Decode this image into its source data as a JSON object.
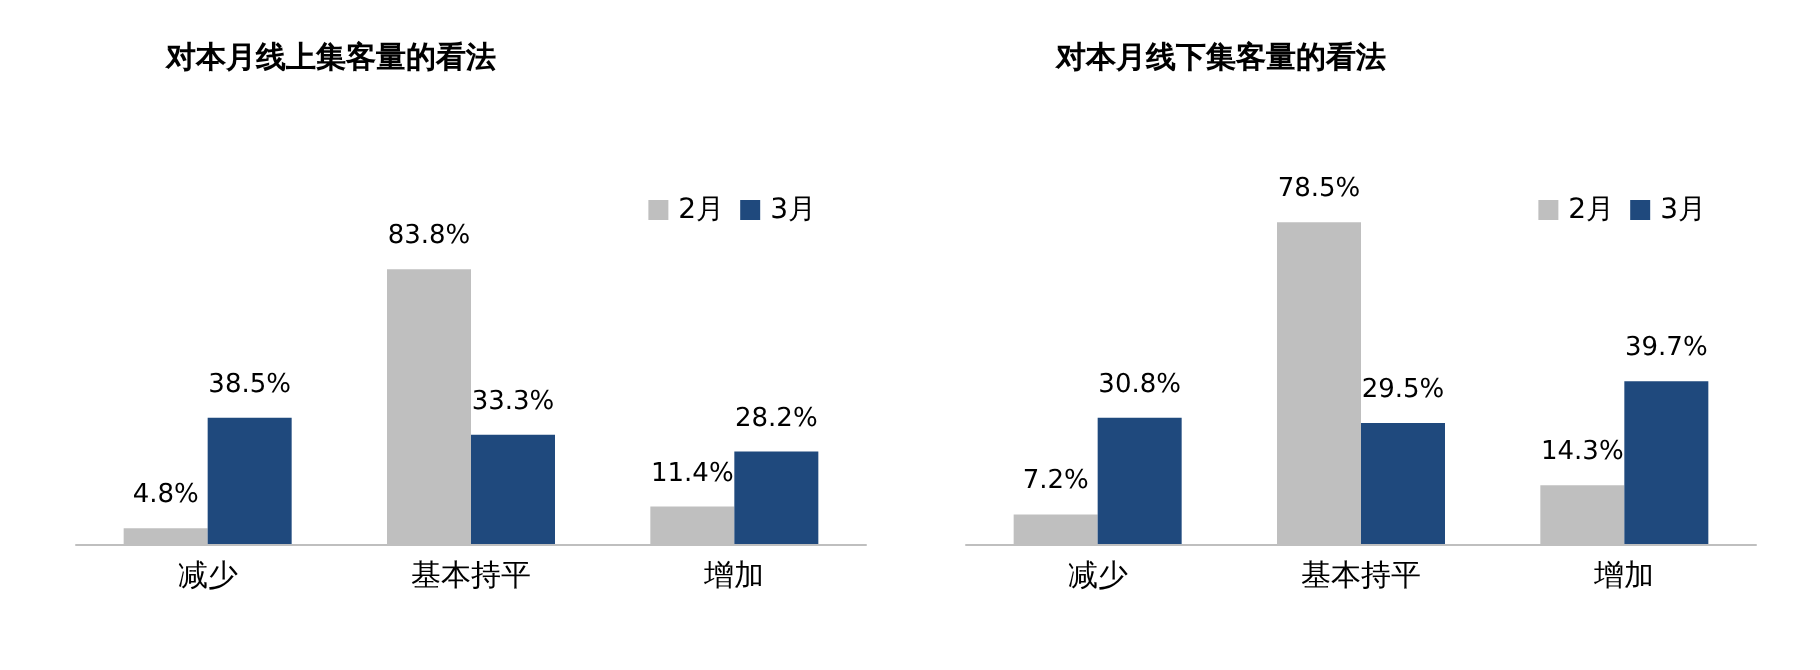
{
  "chart_data": [
    {
      "type": "bar",
      "title": "对本月线上集客量的看法",
      "categories": [
        "减少",
        "基本持平",
        "增加"
      ],
      "series": [
        {
          "name": "2月",
          "color": "#bfbfbf",
          "values": [
            4.8,
            83.8,
            11.4
          ],
          "value_labels": [
            "4.8%",
            "83.8%",
            "11.4%"
          ]
        },
        {
          "name": "3月",
          "color": "#1f497d",
          "values": [
            38.5,
            33.3,
            28.2
          ],
          "value_labels": [
            "38.5%",
            "33.3%",
            "28.2%"
          ]
        }
      ],
      "legend": "top right"
    },
    {
      "type": "bar",
      "title": "对本月线下集客量的看法",
      "categories": [
        "减少",
        "基本持平",
        "增加"
      ],
      "series": [
        {
          "name": "2月",
          "color": "#bfbfbf",
          "values": [
            7.2,
            78.5,
            14.3
          ],
          "value_labels": [
            "7.2%",
            "78.5%",
            "14.3%"
          ]
        },
        {
          "name": "3月",
          "color": "#1f497d",
          "values": [
            30.8,
            29.5,
            39.7
          ],
          "value_labels": [
            "30.8%",
            "29.5%",
            "39.7%"
          ]
        }
      ],
      "legend": "top right"
    }
  ]
}
